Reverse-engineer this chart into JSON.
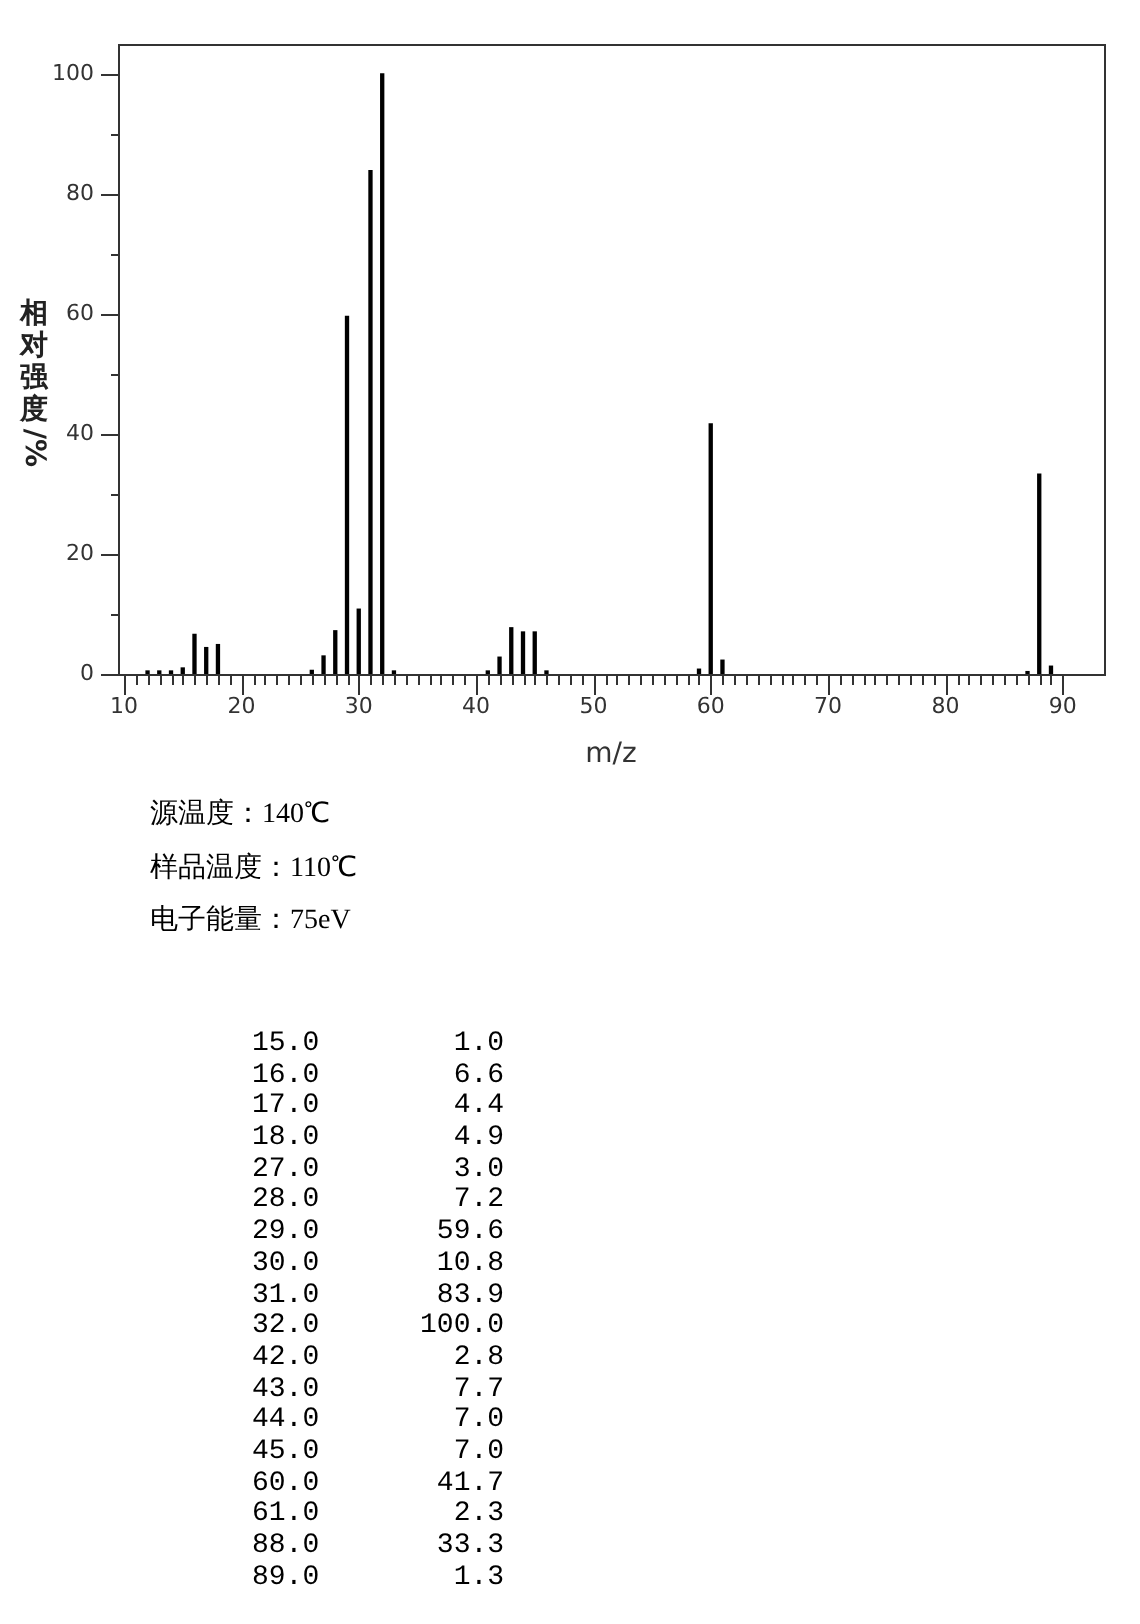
{
  "chart_data": [
    {
      "type": "bar",
      "xlabel": "m/z",
      "ylabel": "相对强度/%",
      "x": [
        12,
        13,
        14,
        15,
        16,
        17,
        18,
        26,
        27,
        28,
        29,
        30,
        31,
        32,
        33,
        41,
        42,
        43,
        44,
        45,
        46,
        59,
        60,
        61,
        87,
        88,
        89
      ],
      "values": [
        0.5,
        0.5,
        0.5,
        1.0,
        6.6,
        4.4,
        4.9,
        0.6,
        3.0,
        7.2,
        59.6,
        10.8,
        83.9,
        100.0,
        0.5,
        0.5,
        2.8,
        7.7,
        7.0,
        7.0,
        0.5,
        0.8,
        41.7,
        2.3,
        0.4,
        33.3,
        1.3
      ],
      "color": "#000000",
      "xlim": [
        10,
        93
      ],
      "ylim": [
        0,
        105
      ],
      "xticks": [
        10,
        {
          "value": 11,
          "label": null
        },
        {
          "value": 12,
          "label": null
        },
        {
          "value": 13,
          "label": null
        },
        {
          "value": 14,
          "label": null
        },
        {
          "value": 15,
          "label": null
        },
        {
          "value": 16,
          "label": null
        },
        {
          "value": 17,
          "label": null
        },
        {
          "value": 18,
          "label": null
        },
        {
          "value": 19,
          "label": null
        },
        20,
        {
          "value": 21,
          "label": null
        },
        {
          "value": 22,
          "label": null
        },
        {
          "value": 23,
          "label": null
        },
        {
          "value": 24,
          "label": null
        },
        {
          "value": 25,
          "label": null
        },
        {
          "value": 26,
          "label": null
        },
        {
          "value": 27,
          "label": null
        },
        {
          "value": 28,
          "label": null
        },
        {
          "value": 29,
          "label": null
        },
        30,
        {
          "value": 31,
          "label": null
        },
        {
          "value": 32,
          "label": null
        },
        {
          "value": 33,
          "label": null
        },
        {
          "value": 34,
          "label": null
        },
        {
          "value": 35,
          "label": null
        },
        {
          "value": 36,
          "label": null
        },
        {
          "value": 37,
          "label": null
        },
        {
          "value": 38,
          "label": null
        },
        {
          "value": 39,
          "label": null
        },
        40,
        {
          "value": 41,
          "label": null
        },
        {
          "value": 42,
          "label": null
        },
        {
          "value": 43,
          "label": null
        },
        {
          "value": 44,
          "label": null
        },
        {
          "value": 45,
          "label": null
        },
        {
          "value": 46,
          "label": null
        },
        {
          "value": 47,
          "label": null
        },
        {
          "value": 48,
          "label": null
        },
        {
          "value": 49,
          "label": null
        },
        50,
        {
          "value": 51,
          "label": null
        },
        {
          "value": 52,
          "label": null
        },
        {
          "value": 53,
          "label": null
        },
        {
          "value": 54,
          "label": null
        },
        {
          "value": 55,
          "label": null
        },
        {
          "value": 56,
          "label": null
        },
        {
          "value": 57,
          "label": null
        },
        {
          "value": 58,
          "label": null
        },
        {
          "value": 59,
          "label": null
        },
        60,
        {
          "value": 61,
          "label": null
        },
        {
          "value": 62,
          "label": null
        },
        {
          "value": 63,
          "label": null
        },
        {
          "value": 64,
          "label": null
        },
        {
          "value": 65,
          "label": null
        },
        {
          "value": 66,
          "label": null
        },
        {
          "value": 67,
          "label": null
        },
        {
          "value": 68,
          "label": null
        },
        {
          "value": 69,
          "label": null
        },
        70,
        {
          "value": 71,
          "label": null
        },
        {
          "value": 72,
          "label": null
        },
        {
          "value": 73,
          "label": null
        },
        {
          "value": 74,
          "label": null
        },
        {
          "value": 75,
          "label": null
        },
        {
          "value": 76,
          "label": null
        },
        {
          "value": 77,
          "label": null
        },
        {
          "value": 78,
          "label": null
        },
        {
          "value": 79,
          "label": null
        },
        80,
        {
          "value": 81,
          "label": null
        },
        {
          "value": 82,
          "label": null
        },
        {
          "value": 83,
          "label": null
        },
        {
          "value": 84,
          "label": null
        },
        {
          "value": 85,
          "label": null
        },
        {
          "value": 86,
          "label": null
        },
        {
          "value": 87,
          "label": null
        },
        {
          "value": 88,
          "label": null
        },
        {
          "value": 89,
          "label": null
        },
        90
      ],
      "yticks": [
        0,
        {
          "value": 10,
          "label": null
        },
        20,
        {
          "value": 30,
          "label": null
        },
        40,
        {
          "value": 50,
          "label": null
        },
        60,
        {
          "value": 70,
          "label": null
        },
        80,
        {
          "value": 90,
          "label": null
        },
        100
      ],
      "annotations": [
        "源温度：140℃",
        "样品温度：110℃",
        "电子能量：75eV"
      ]
    },
    {
      "type": "other",
      "annotations": [
        "15.0        1.0",
        "16.0        6.6",
        "17.0        4.4",
        "18.0        4.9",
        "27.0        3.0",
        "28.0        7.2",
        "29.0       59.6",
        "30.0       10.8",
        "31.0       83.9",
        "32.0      100.0",
        "42.0        2.8",
        "43.0        7.7",
        "44.0        7.0",
        "45.0        7.0",
        "60.0       41.7",
        "61.0        2.3",
        "88.0       33.3",
        "89.0        1.3"
      ]
    }
  ]
}
